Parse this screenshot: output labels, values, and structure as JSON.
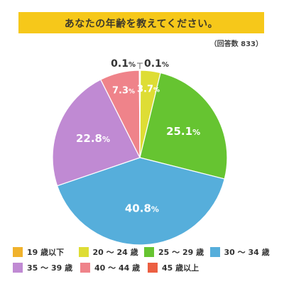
{
  "header": {
    "title": "あなたの年齢を教えてください。",
    "respondents": "（回答数 833）"
  },
  "colors": {
    "title_bar": "#f6c81a",
    "under_19": "#f0b22c",
    "age_20_24": "#dedd35",
    "age_25_29": "#66c431",
    "age_30_34": "#56aedb",
    "age_35_39": "#c08ad3",
    "age_40_44": "#ef838a",
    "age_45_plus": "#ec5f42"
  },
  "chart_data": {
    "type": "pie",
    "title": "あなたの年齢を教えてください。",
    "total_respondents": 833,
    "start": "top",
    "direction": "clockwise",
    "slices": [
      {
        "label": "19 歳以下",
        "value": 0.1,
        "display": "0.1",
        "color": "#f0b22c"
      },
      {
        "label": "20 ～ 24 歳",
        "value": 3.7,
        "display": "3.7",
        "color": "#dedd35"
      },
      {
        "label": "25 ～ 29 歳",
        "value": 25.1,
        "display": "25.1",
        "color": "#66c431"
      },
      {
        "label": "30 ～ 34 歳",
        "value": 40.8,
        "display": "40.8",
        "color": "#56aedb"
      },
      {
        "label": "35 ～ 39 歳",
        "value": 22.8,
        "display": "22.8",
        "color": "#c08ad3"
      },
      {
        "label": "40 ～ 44 歳",
        "value": 7.3,
        "display": "7.3",
        "color": "#ef838a"
      },
      {
        "label": "45 歳以上",
        "value": 0.1,
        "display": "0.1",
        "color": "#ec5f42"
      }
    ],
    "unit": "%"
  },
  "legend": {
    "items": [
      {
        "label": "19 歳以下",
        "color": "#f0b22c"
      },
      {
        "label": "20 ～ 24 歳",
        "color": "#dedd35"
      },
      {
        "label": "25 ～ 29 歳",
        "color": "#66c431"
      },
      {
        "label": "30 ～ 34 歳",
        "color": "#56aedb"
      },
      {
        "label": "35 ～ 39 歳",
        "color": "#c08ad3"
      },
      {
        "label": "40 ～ 44 歳",
        "color": "#ef838a"
      },
      {
        "label": "45 歳以上",
        "color": "#ec5f42"
      }
    ]
  }
}
